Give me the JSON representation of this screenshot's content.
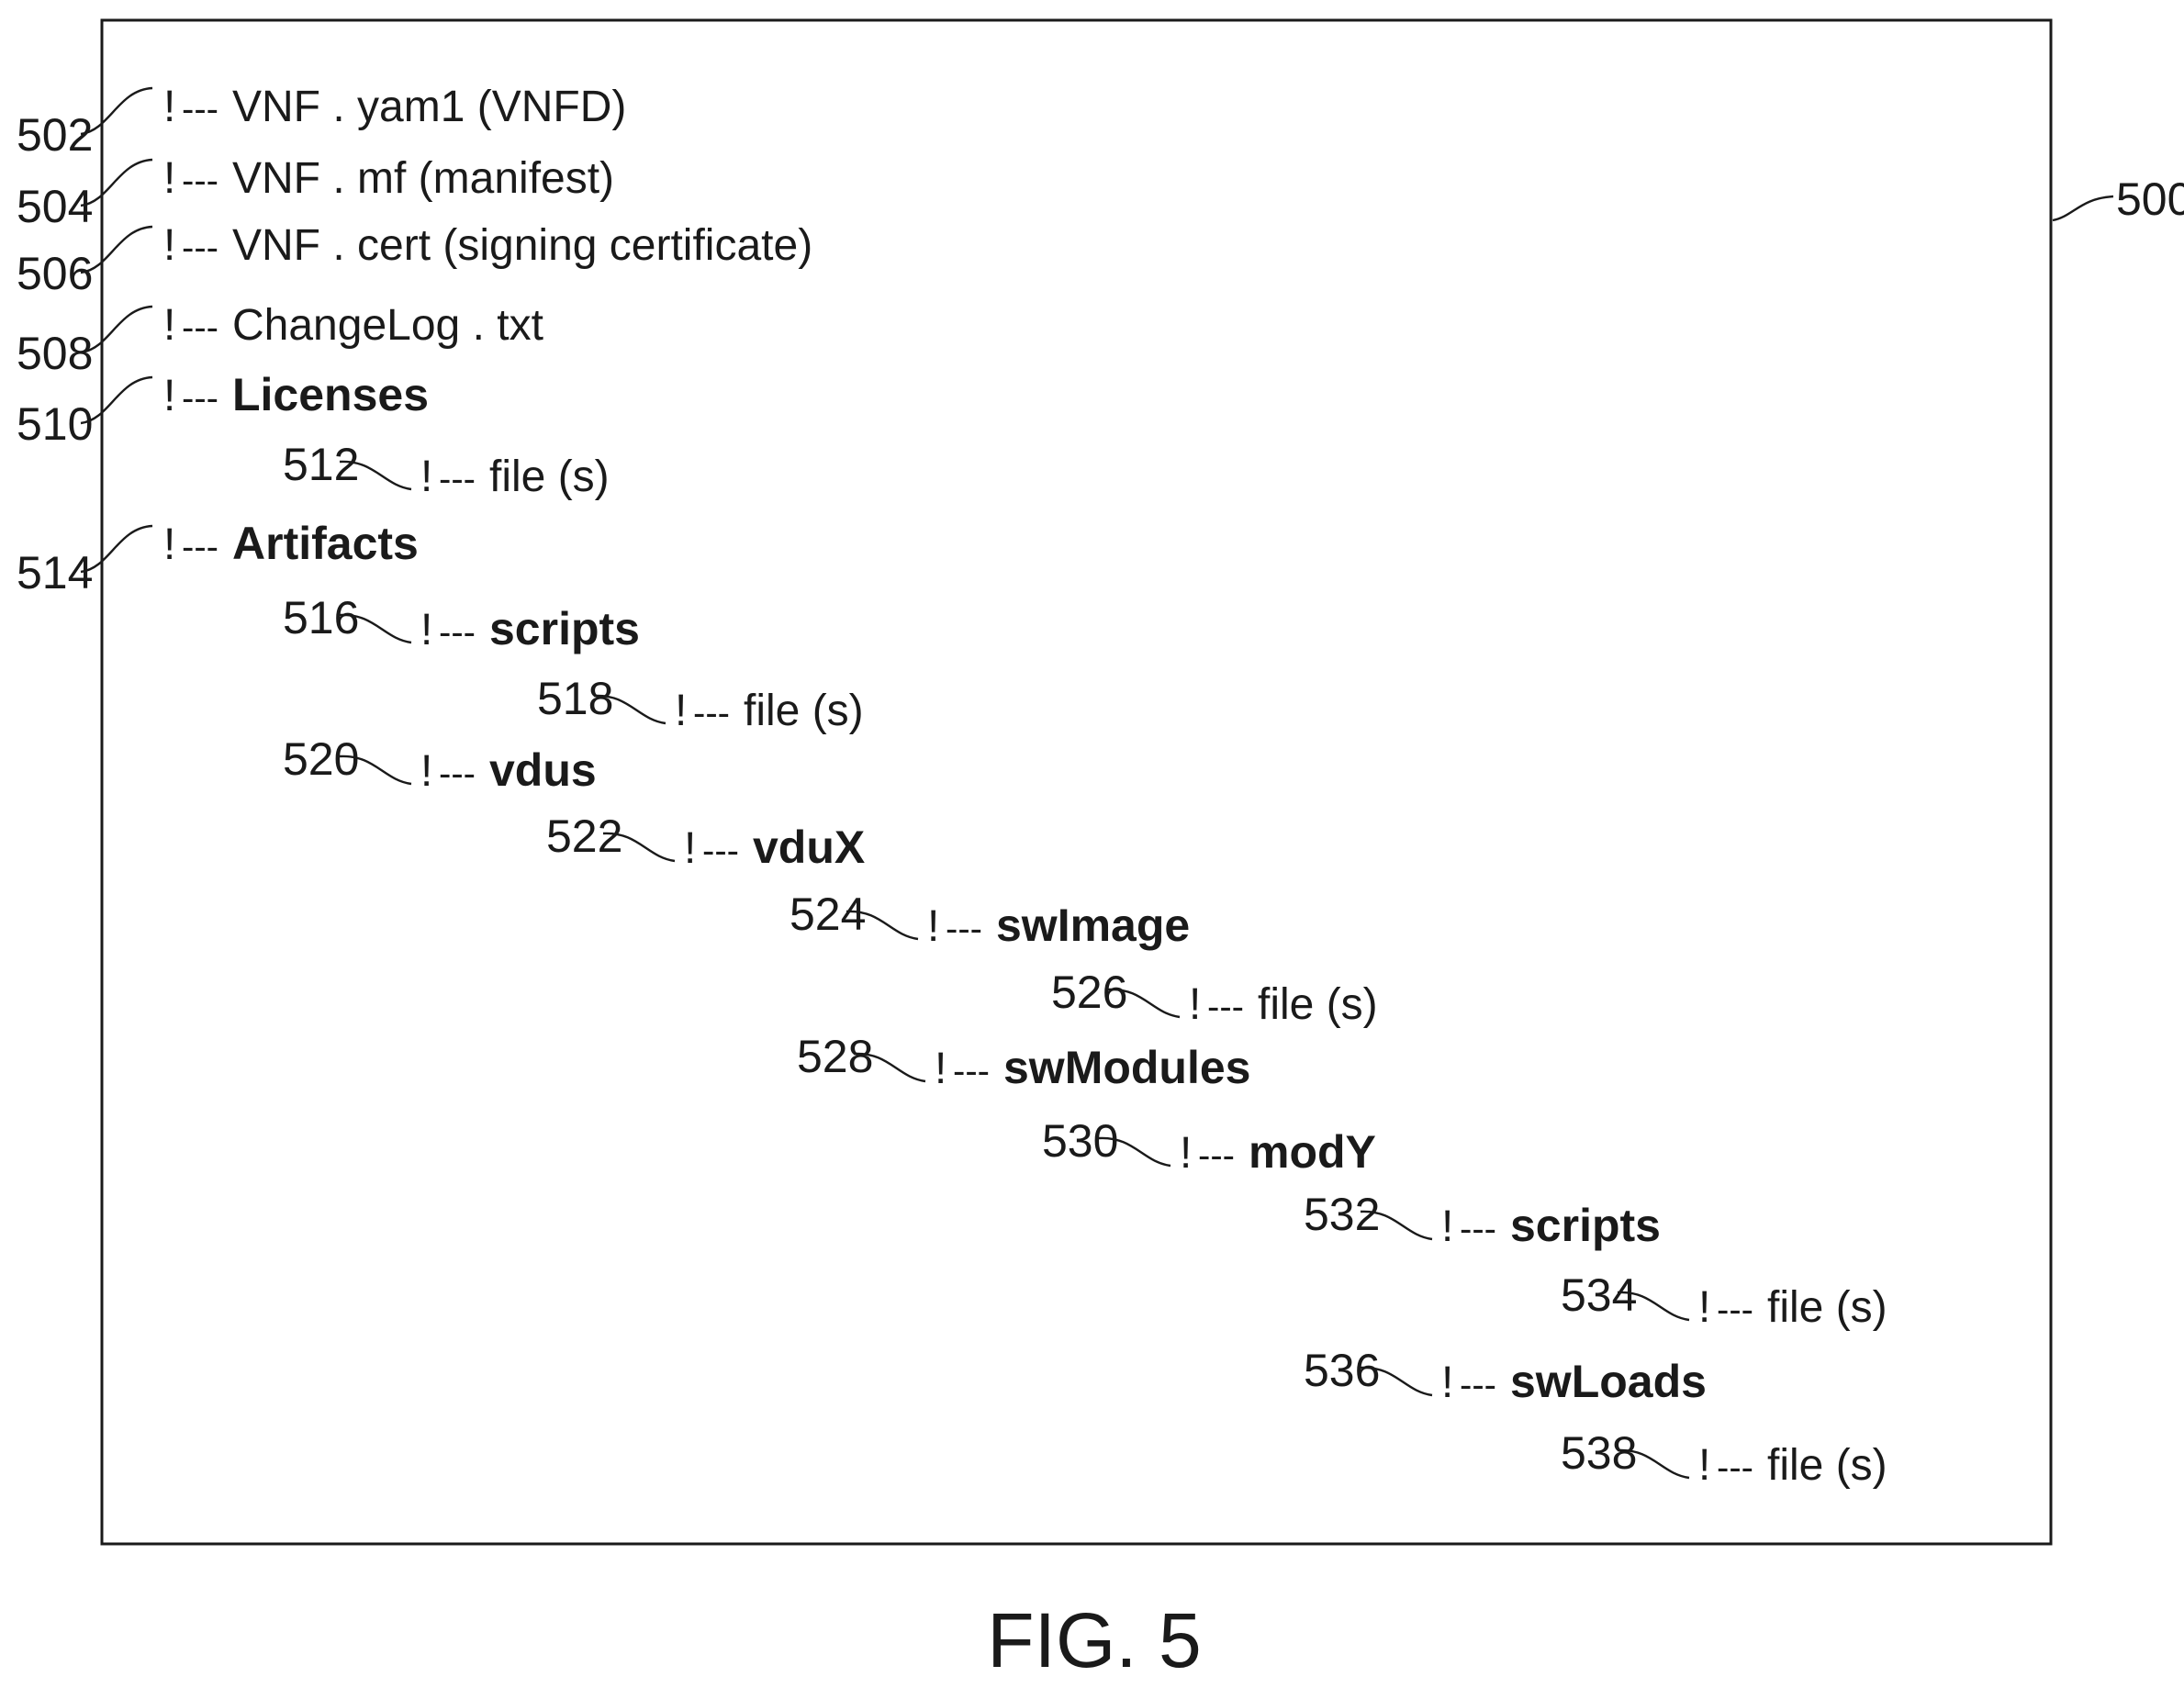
{
  "figure": {
    "reference": "500",
    "caption": "FIG. 5"
  },
  "tree": [
    {
      "ref": "502",
      "marker": "!",
      "dashes": "---",
      "text": "VNF . yam1 (VNFD)",
      "bold": false,
      "depth": 0
    },
    {
      "ref": "504",
      "marker": "!",
      "dashes": "---",
      "text": "VNF . mf (manifest)",
      "bold": false,
      "depth": 0
    },
    {
      "ref": "506",
      "marker": "!",
      "dashes": "---",
      "text": "VNF . cert (signing certificate)",
      "bold": false,
      "depth": 0
    },
    {
      "ref": "508",
      "marker": "!",
      "dashes": "---",
      "text": "ChangeLog . txt",
      "bold": false,
      "depth": 0
    },
    {
      "ref": "510",
      "marker": "!",
      "dashes": "---",
      "text": "Licenses",
      "bold": true,
      "depth": 0
    },
    {
      "ref": "512",
      "marker": "!",
      "dashes": "---",
      "text": "file (s)",
      "bold": false,
      "depth": 1
    },
    {
      "ref": "514",
      "marker": "!",
      "dashes": "---",
      "text": "Artifacts",
      "bold": true,
      "depth": 0
    },
    {
      "ref": "516",
      "marker": "!",
      "dashes": "---",
      "text": "scripts",
      "bold": true,
      "depth": 1
    },
    {
      "ref": "518",
      "marker": "!",
      "dashes": "---",
      "text": "file (s)",
      "bold": false,
      "depth": 2
    },
    {
      "ref": "520",
      "marker": "!",
      "dashes": "---",
      "text": "vdus",
      "bold": true,
      "depth": 1
    },
    {
      "ref": "522",
      "marker": "!",
      "dashes": "---",
      "text": "vduX",
      "bold": true,
      "depth": 2
    },
    {
      "ref": "524",
      "marker": "!",
      "dashes": "---",
      "text": "swImage",
      "bold": true,
      "depth": 3
    },
    {
      "ref": "526",
      "marker": "!",
      "dashes": "---",
      "text": "file (s)",
      "bold": false,
      "depth": 4
    },
    {
      "ref": "528",
      "marker": "!",
      "dashes": "---",
      "text": "swModules",
      "bold": true,
      "depth": 3
    },
    {
      "ref": "530",
      "marker": "!",
      "dashes": "---",
      "text": "modY",
      "bold": true,
      "depth": 4
    },
    {
      "ref": "532",
      "marker": "!",
      "dashes": "---",
      "text": "scripts",
      "bold": true,
      "depth": 5
    },
    {
      "ref": "534",
      "marker": "!",
      "dashes": "---",
      "text": "file (s)",
      "bold": false,
      "depth": 6
    },
    {
      "ref": "536",
      "marker": "!",
      "dashes": "---",
      "text": "swLoads",
      "bold": true,
      "depth": 5
    },
    {
      "ref": "538",
      "marker": "!",
      "dashes": "---",
      "text": "file (s)",
      "bold": false,
      "depth": 6
    }
  ]
}
